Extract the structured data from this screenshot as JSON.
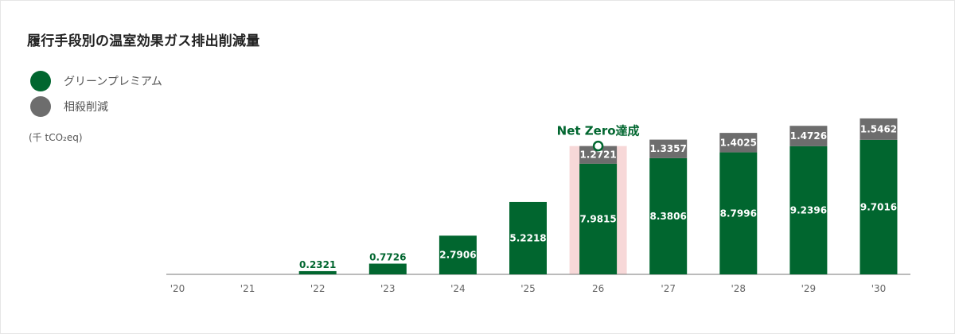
{
  "chart_data": {
    "type": "bar",
    "stacked": true,
    "title": "履行手段別の温室効果ガス排出削減量",
    "unit": "(千 tCO₂eq)",
    "categories": [
      "'20",
      "'21",
      "'22",
      "'23",
      "'24",
      "'25",
      "26",
      "'27",
      "'28",
      "'29",
      "'30"
    ],
    "series": [
      {
        "name": "グリーンプレミアム",
        "color": "#01662f",
        "values": [
          null,
          null,
          0.2321,
          0.7726,
          2.7906,
          5.2218,
          7.9815,
          8.3806,
          8.7996,
          9.2396,
          9.7016
        ],
        "labels": [
          "",
          "",
          "0.2321",
          "0.7726",
          "2.7906",
          "5.2218",
          "7.9815",
          "8.3806",
          "8.7996",
          "9.2396",
          "9.7016"
        ]
      },
      {
        "name": "相殺削減",
        "color": "#6d6d6d",
        "values": [
          null,
          null,
          null,
          null,
          null,
          null,
          1.2721,
          1.3357,
          1.4025,
          1.4726,
          1.5462
        ],
        "labels": [
          "",
          "",
          "",
          "",
          "",
          "",
          "1.2721",
          "1.3357",
          "1.4025",
          "1.4726",
          "1.5462"
        ]
      }
    ],
    "annotation": {
      "text": "Net Zero達成",
      "category_index": 6,
      "color": "#01662f",
      "highlight_color": "#f7d8d8"
    },
    "ylim": [
      0,
      11.7
    ],
    "grid": false,
    "legend": "top-left"
  }
}
